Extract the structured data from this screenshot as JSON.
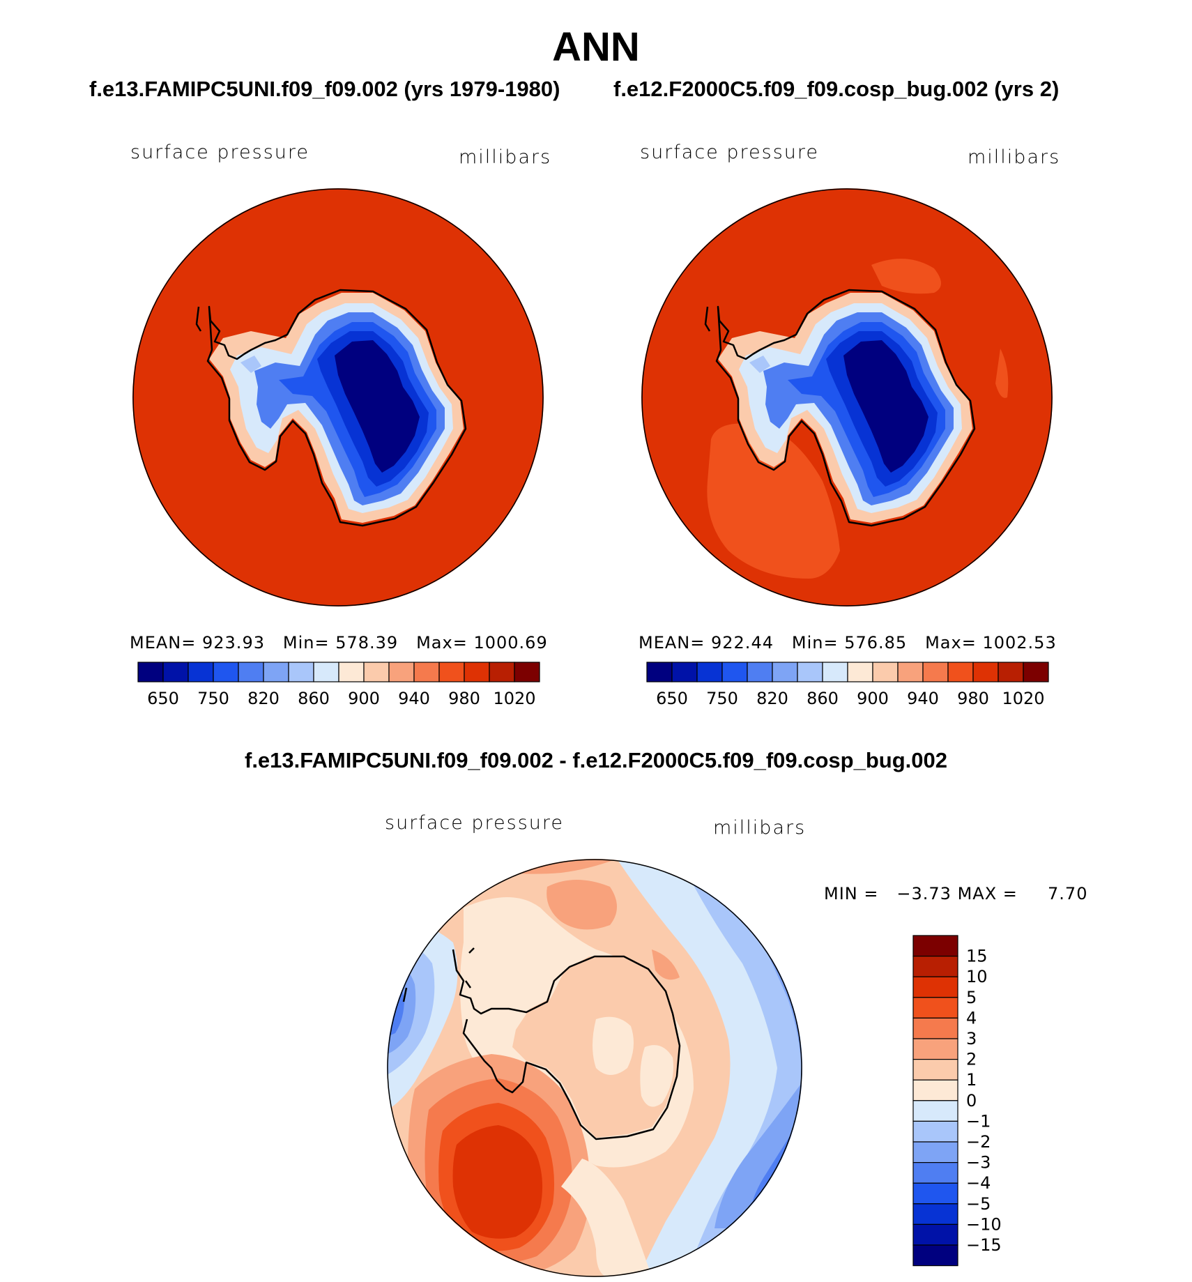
{
  "figure": {
    "title": "ANN",
    "case1_title": "f.e13.FAMIPC5UNI.f09_f09.002 (yrs 1979-1980)",
    "case2_title": "f.e12.F2000C5.f09_f09.cosp_bug.002 (yrs 2)",
    "diff_title": "f.e13.FAMIPC5UNI.f09_f09.002 - f.e12.F2000C5.f09_f09.cosp_bug.002"
  },
  "chart_data": [
    {
      "type": "heatmap",
      "projection": "polar-stereographic-south",
      "variable": "surface pressure",
      "units": "millibars",
      "stats": {
        "mean_label": "MEAN=",
        "mean": "923.93",
        "min_label": "Min=",
        "min": "578.39",
        "max_label": "Max=",
        "max": "1000.69"
      },
      "colorbar_ticks": [
        "650",
        "750",
        "820",
        "860",
        "900",
        "940",
        "980",
        "1020"
      ],
      "colorbar_colors": [
        "#00007f",
        "#0012a8",
        "#0733d4",
        "#1f56ef",
        "#4f7ef2",
        "#7ea4f5",
        "#a9c6fa",
        "#d7e9fb",
        "#fde9d6",
        "#fbcbac",
        "#f8a27c",
        "#f57a4d",
        "#f0511c",
        "#de3204",
        "#b81f02",
        "#7c0000"
      ]
    },
    {
      "type": "heatmap",
      "projection": "polar-stereographic-south",
      "variable": "surface pressure",
      "units": "millibars",
      "stats": {
        "mean_label": "MEAN=",
        "mean": "922.44",
        "min_label": "Min=",
        "min": "576.85",
        "max_label": "Max=",
        "max": "1002.53"
      },
      "colorbar_ticks": [
        "650",
        "750",
        "820",
        "860",
        "900",
        "940",
        "980",
        "1020"
      ],
      "colorbar_colors": [
        "#00007f",
        "#0012a8",
        "#0733d4",
        "#1f56ef",
        "#4f7ef2",
        "#7ea4f5",
        "#a9c6fa",
        "#d7e9fb",
        "#fde9d6",
        "#fbcbac",
        "#f8a27c",
        "#f57a4d",
        "#f0511c",
        "#de3204",
        "#b81f02",
        "#7c0000"
      ]
    },
    {
      "type": "heatmap",
      "projection": "polar-stereographic-south",
      "variable": "surface pressure",
      "units": "millibars",
      "stats": {
        "min_label": "MIN =",
        "min": "−3.73",
        "max_label": "MAX =",
        "max": "7.70"
      },
      "colorbar_ticks": [
        "15",
        "10",
        "5",
        "4",
        "3",
        "2",
        "1",
        "0",
        "−1",
        "−2",
        "−3",
        "−4",
        "−5",
        "−10",
        "−15"
      ],
      "colorbar_colors": [
        "#7c0000",
        "#b81f02",
        "#de3204",
        "#f0511c",
        "#f57a4d",
        "#f8a27c",
        "#fbcbac",
        "#fde9d6",
        "#d7e9fb",
        "#a9c6fa",
        "#7ea4f5",
        "#4f7ef2",
        "#1f56ef",
        "#0733d4",
        "#0012a8",
        "#00007f"
      ]
    }
  ]
}
